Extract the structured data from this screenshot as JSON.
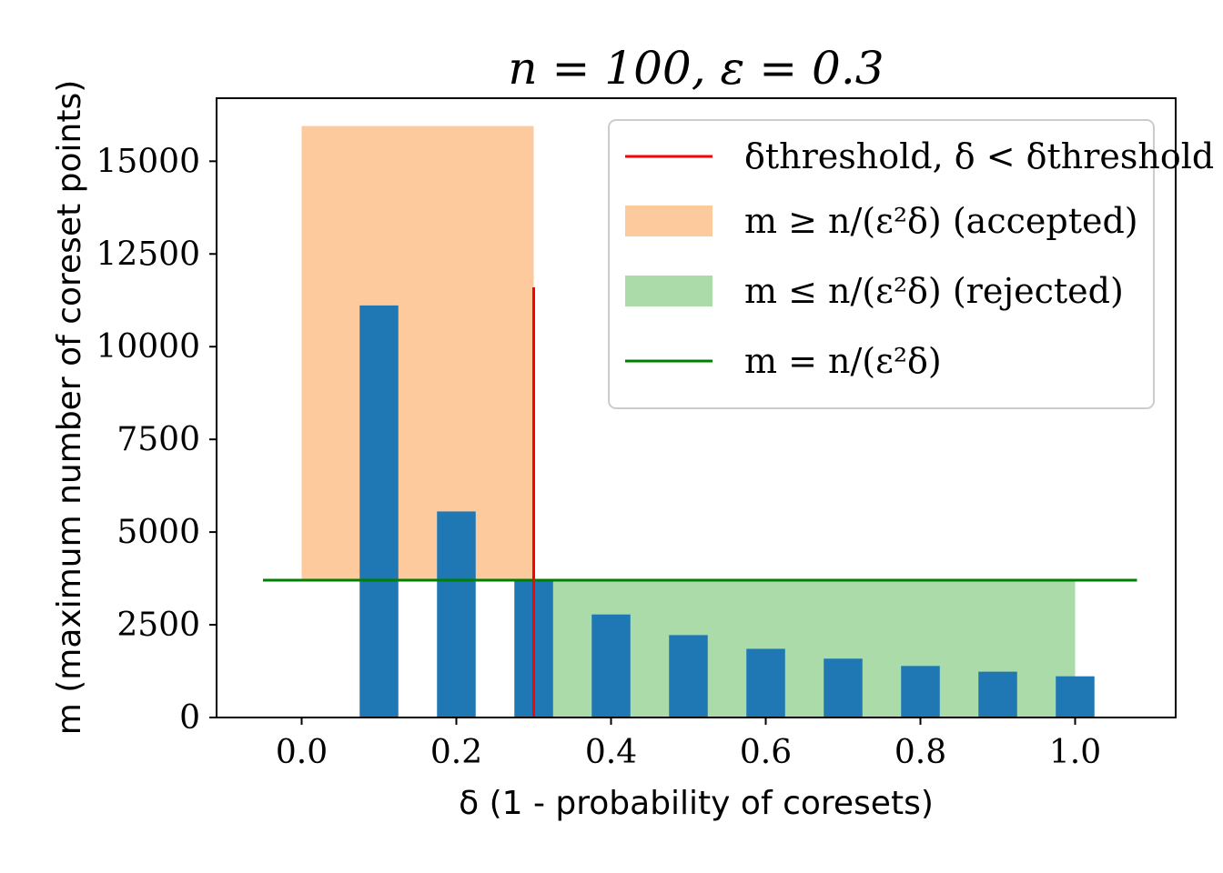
{
  "chart_data": {
    "type": "bar",
    "title": "n = 100, ε = 0.3",
    "xlabel": "δ (1 - probability of coresets)",
    "ylabel": "m (maximum number of coreset points)",
    "xlim": [
      -0.11,
      1.13
    ],
    "ylim": [
      0,
      16700
    ],
    "xticks": [
      0.0,
      0.2,
      0.4,
      0.6,
      0.8,
      1.0
    ],
    "xtick_labels": [
      "0.0",
      "0.2",
      "0.4",
      "0.6",
      "0.8",
      "1.0"
    ],
    "yticks": [
      0,
      2500,
      5000,
      7500,
      10000,
      12500,
      15000
    ],
    "ytick_labels": [
      "0",
      "2500",
      "5000",
      "7500",
      "10000",
      "12500",
      "15000"
    ],
    "bar_width": 0.05,
    "bar_color": "#1f77b4",
    "bars": {
      "x": [
        0.1,
        0.2,
        0.3,
        0.4,
        0.5,
        0.6,
        0.7,
        0.8,
        0.9,
        1.0
      ],
      "values": [
        11111,
        5556,
        3704,
        2778,
        2222,
        1852,
        1587,
        1389,
        1235,
        1111
      ]
    },
    "threshold_line": {
      "x": 0.3,
      "y_range": [
        0,
        11600
      ],
      "color": "#ff0000"
    },
    "m_line": {
      "y": 3704,
      "x_range": [
        -0.05,
        1.08
      ],
      "color": "#008000"
    },
    "accepted_region": {
      "x_range": [
        0.0,
        0.3
      ],
      "y_range": [
        3704,
        15950
      ],
      "color": "#fdca9e"
    },
    "rejected_region": {
      "x_range": [
        0.3,
        1.0
      ],
      "y_range": [
        0,
        3704
      ],
      "color": "#abdba8"
    },
    "legend": {
      "position": "upper right",
      "entries": [
        {
          "kind": "line",
          "color": "#ff0000",
          "label": "δthreshold, δ < δthreshold"
        },
        {
          "kind": "patch",
          "color": "#fdca9e",
          "label": "m ≥ n/(ε²δ) (accepted)"
        },
        {
          "kind": "patch",
          "color": "#abdba8",
          "label": "m ≤ n/(ε²δ) (rejected)"
        },
        {
          "kind": "line",
          "color": "#008000",
          "label": "m = n/(ε²δ)"
        }
      ]
    }
  }
}
